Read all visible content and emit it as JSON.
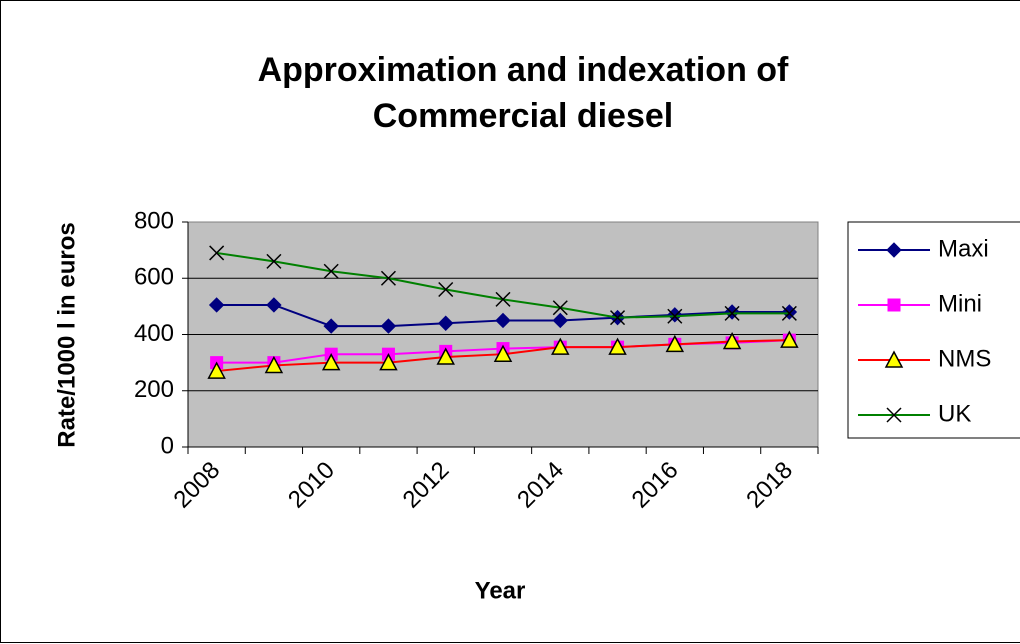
{
  "chart_data": {
    "type": "line",
    "title": "Approximation and indexation of Commercial diesel",
    "x_label": "Year",
    "y_label": "Rate/1000 l in euros",
    "categories": [
      "2008",
      null,
      "2010",
      null,
      "2012",
      null,
      "2014",
      null,
      "2016",
      null,
      "2018"
    ],
    "series": [
      {
        "name": "Maxi",
        "color": "#000080",
        "marker": "diamond",
        "values": [
          505,
          505,
          430,
          430,
          440,
          450,
          450,
          460,
          470,
          480,
          480
        ]
      },
      {
        "name": "Mini",
        "color": "#ff00ff",
        "marker": "square",
        "values": [
          300,
          300,
          330,
          330,
          340,
          350,
          355,
          355,
          365,
          370,
          380
        ]
      },
      {
        "name": "NMS",
        "color": "#ff0000",
        "marker": "triangle",
        "values": [
          270,
          290,
          300,
          300,
          320,
          330,
          355,
          355,
          365,
          375,
          380
        ]
      },
      {
        "name": "UK",
        "color": "#008000",
        "marker": "x",
        "values": [
          690,
          660,
          625,
          600,
          560,
          525,
          495,
          460,
          465,
          475,
          475
        ]
      }
    ],
    "ylim": [
      0,
      800
    ],
    "yticks": [
      0,
      200,
      400,
      600,
      800
    ],
    "grid": true,
    "legend": "right"
  }
}
